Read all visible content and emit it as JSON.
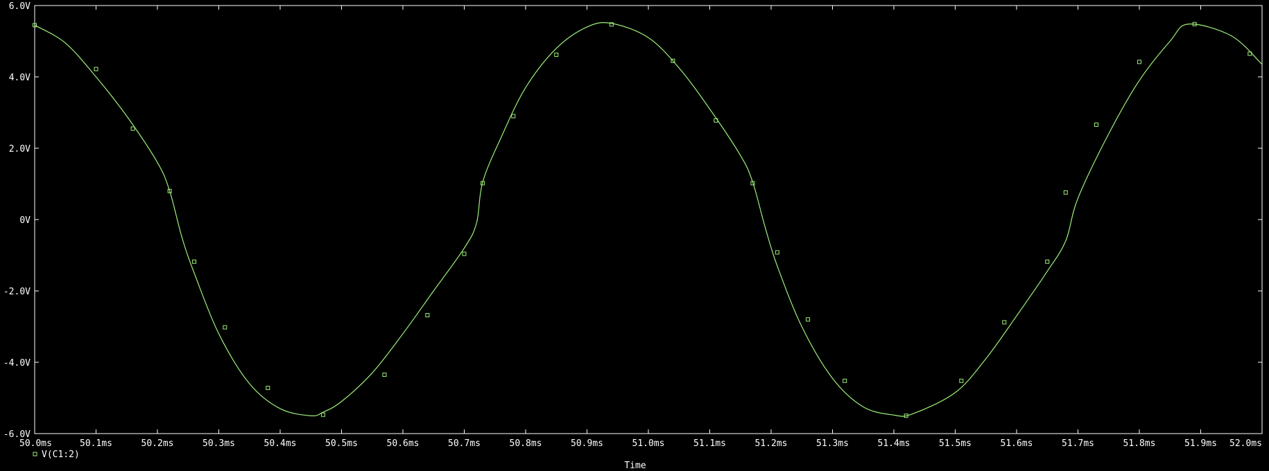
{
  "chart_data": {
    "type": "line",
    "xlabel": "Time",
    "ylabel": "",
    "xlim": [
      50.0,
      52.0
    ],
    "ylim": [
      -6.0,
      6.0
    ],
    "x_unit": "ms",
    "y_unit": "V",
    "x_ticks": [
      50.0,
      50.1,
      50.2,
      50.3,
      50.4,
      50.5,
      50.6,
      50.7,
      50.8,
      50.9,
      51.0,
      51.1,
      51.2,
      51.3,
      51.4,
      51.5,
      51.6,
      51.7,
      51.8,
      51.9,
      52.0
    ],
    "x_tick_labels": [
      "50.0ms",
      "50.1ms",
      "50.2ms",
      "50.3ms",
      "50.4ms",
      "50.5ms",
      "50.6ms",
      "50.7ms",
      "50.8ms",
      "50.9ms",
      "51.0ms",
      "51.1ms",
      "51.2ms",
      "51.3ms",
      "51.4ms",
      "51.5ms",
      "51.6ms",
      "51.7ms",
      "51.8ms",
      "51.9ms",
      "52.0ms"
    ],
    "y_ticks": [
      6.0,
      4.0,
      2.0,
      0,
      -2.0,
      -4.0,
      -6.0
    ],
    "y_tick_labels": [
      "6.0V",
      "4.0V",
      "2.0V",
      "0V",
      "-2.0V",
      "-4.0V",
      "-6.0V"
    ],
    "grid": false,
    "legend_placement": "bottom-left",
    "colors": {
      "background": "#000000",
      "axes": "#ffffff",
      "trace": "#9ef07a"
    },
    "series": [
      {
        "name": "V(C1:2)",
        "marker": "square",
        "x": [
          50.0,
          50.05,
          50.1,
          50.15,
          50.2,
          50.22,
          50.24,
          50.26,
          50.3,
          50.35,
          50.4,
          50.45,
          50.47,
          50.5,
          50.55,
          50.6,
          50.65,
          50.7,
          50.72,
          50.73,
          50.76,
          50.8,
          50.85,
          50.9,
          50.94,
          51.0,
          51.05,
          51.1,
          51.15,
          51.17,
          51.19,
          51.21,
          51.25,
          51.3,
          51.35,
          51.4,
          51.43,
          51.5,
          51.55,
          51.6,
          51.65,
          51.68,
          51.7,
          51.75,
          51.8,
          51.85,
          51.88,
          51.95,
          52.0
        ],
        "values": [
          5.45,
          4.95,
          4.0,
          2.9,
          1.6,
          0.8,
          -0.5,
          -1.5,
          -3.2,
          -4.6,
          -5.3,
          -5.5,
          -5.4,
          -5.1,
          -4.3,
          -3.2,
          -2.0,
          -0.8,
          -0.1,
          1.05,
          2.3,
          3.7,
          4.8,
          5.4,
          5.5,
          5.1,
          4.25,
          3.1,
          1.8,
          1.05,
          -0.2,
          -1.3,
          -3.0,
          -4.45,
          -5.25,
          -5.48,
          -5.45,
          -4.85,
          -3.9,
          -2.7,
          -1.45,
          -0.6,
          0.6,
          2.4,
          3.9,
          5.0,
          5.48,
          5.15,
          4.35
        ]
      }
    ],
    "markers": [
      [
        50.0,
        5.45
      ],
      [
        50.1,
        4.22
      ],
      [
        50.16,
        2.55
      ],
      [
        50.22,
        0.8
      ],
      [
        50.26,
        -1.18
      ],
      [
        50.31,
        -3.02
      ],
      [
        50.38,
        -4.72
      ],
      [
        50.47,
        -5.47
      ],
      [
        50.57,
        -4.35
      ],
      [
        50.64,
        -2.68
      ],
      [
        50.7,
        -0.96
      ],
      [
        50.73,
        1.02
      ],
      [
        50.78,
        2.9
      ],
      [
        50.85,
        4.62
      ],
      [
        50.94,
        5.47
      ],
      [
        51.04,
        4.45
      ],
      [
        51.11,
        2.78
      ],
      [
        51.17,
        1.02
      ],
      [
        51.21,
        -0.92
      ],
      [
        51.26,
        -2.8
      ],
      [
        51.32,
        -4.52
      ],
      [
        51.42,
        -5.5
      ],
      [
        51.51,
        -4.52
      ],
      [
        51.58,
        -2.88
      ],
      [
        51.65,
        -1.18
      ],
      [
        51.68,
        0.76
      ],
      [
        51.73,
        2.66
      ],
      [
        51.8,
        4.42
      ],
      [
        51.89,
        5.48
      ],
      [
        51.98,
        4.65
      ]
    ]
  }
}
